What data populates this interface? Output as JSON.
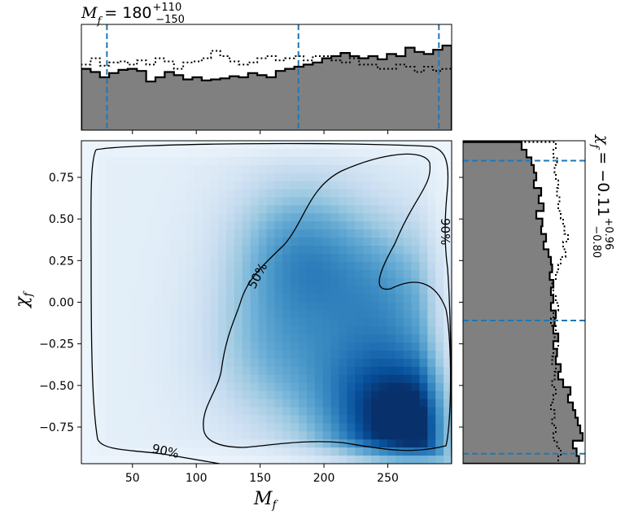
{
  "chart_data": [
    {
      "type": "heatmap",
      "title": "",
      "xlabel": "M_f",
      "ylabel": "χ_f",
      "xlim": [
        10,
        300
      ],
      "ylim": [
        -0.97,
        0.97
      ],
      "xticks": [
        50,
        100,
        150,
        200,
        250
      ],
      "yticks": [
        -0.75,
        -0.5,
        -0.25,
        0.0,
        0.25,
        0.5,
        0.75
      ],
      "xtick_labels": [
        "50",
        "100",
        "150",
        "200",
        "250"
      ],
      "ytick_labels": [
        "−0.75",
        "−0.50",
        "−0.25",
        "0.00",
        "0.25",
        "0.50",
        "0.75"
      ],
      "colormap": "Blues",
      "density_peaks": [
        {
          "x": 278,
          "y": -0.8,
          "weight": 1.0
        },
        {
          "x": 180,
          "y": 0.3,
          "weight": 0.55
        },
        {
          "x": 250,
          "y": 0.05,
          "weight": 0.45
        },
        {
          "x": 230,
          "y": -0.6,
          "weight": 0.5
        },
        {
          "x": 160,
          "y": -0.3,
          "weight": 0.35
        }
      ],
      "contours": [
        {
          "label": "50%",
          "level": 0.5
        },
        {
          "label": "90%",
          "level": 0.9
        }
      ]
    },
    {
      "type": "histogram",
      "orientation": "vertical",
      "variable": "M_f",
      "xlim": [
        10,
        300
      ],
      "bin_edges": [
        10,
        17.25,
        24.5,
        31.75,
        39,
        46.25,
        53.5,
        60.75,
        68,
        75.25,
        82.5,
        89.75,
        97,
        104.25,
        111.5,
        118.75,
        126,
        133.25,
        140.5,
        147.75,
        155,
        162.25,
        169.5,
        176.75,
        184,
        191.25,
        198.5,
        205.75,
        213,
        220.25,
        227.5,
        234.75,
        242,
        249.25,
        256.5,
        263.75,
        271,
        278.25,
        285.5,
        292.75,
        300
      ],
      "posterior_counts": [
        0.58,
        0.55,
        0.5,
        0.54,
        0.57,
        0.58,
        0.56,
        0.46,
        0.5,
        0.55,
        0.52,
        0.48,
        0.5,
        0.47,
        0.48,
        0.49,
        0.51,
        0.5,
        0.54,
        0.52,
        0.5,
        0.56,
        0.58,
        0.6,
        0.62,
        0.64,
        0.68,
        0.7,
        0.73,
        0.7,
        0.68,
        0.7,
        0.67,
        0.72,
        0.7,
        0.78,
        0.74,
        0.72,
        0.76,
        0.8
      ],
      "prior_counts": [
        0.62,
        0.68,
        0.61,
        0.64,
        0.65,
        0.62,
        0.66,
        0.62,
        0.68,
        0.65,
        0.58,
        0.64,
        0.65,
        0.68,
        0.75,
        0.7,
        0.65,
        0.62,
        0.64,
        0.68,
        0.7,
        0.66,
        0.68,
        0.7,
        0.66,
        0.7,
        0.7,
        0.66,
        0.64,
        0.68,
        0.62,
        0.62,
        0.58,
        0.58,
        0.62,
        0.6,
        0.55,
        0.6,
        0.56,
        0.58
      ],
      "median": 180,
      "lower": 30,
      "upper": 290,
      "summary": {
        "symbol": "M",
        "subscript": "f",
        "value": "= 180",
        "plus": "+110",
        "minus": "−150"
      }
    },
    {
      "type": "histogram",
      "orientation": "horizontal",
      "variable": "χ_f",
      "ylim": [
        -0.97,
        0.97
      ],
      "bin_edges": [
        -0.97,
        -0.924,
        -0.878,
        -0.832,
        -0.786,
        -0.74,
        -0.694,
        -0.648,
        -0.602,
        -0.556,
        -0.51,
        -0.464,
        -0.418,
        -0.372,
        -0.326,
        -0.28,
        -0.234,
        -0.188,
        -0.142,
        -0.096,
        -0.05,
        -0.004,
        0.042,
        0.088,
        0.134,
        0.18,
        0.226,
        0.272,
        0.318,
        0.364,
        0.41,
        0.456,
        0.502,
        0.548,
        0.594,
        0.64,
        0.686,
        0.732,
        0.778,
        0.824,
        0.87,
        0.916,
        0.962
      ],
      "posterior_counts": [
        0.95,
        0.93,
        0.9,
        0.98,
        0.96,
        0.94,
        0.92,
        0.9,
        0.86,
        0.88,
        0.82,
        0.78,
        0.8,
        0.76,
        0.77,
        0.74,
        0.78,
        0.74,
        0.75,
        0.76,
        0.72,
        0.74,
        0.72,
        0.74,
        0.71,
        0.73,
        0.72,
        0.7,
        0.66,
        0.68,
        0.64,
        0.65,
        0.6,
        0.66,
        0.62,
        0.64,
        0.58,
        0.6,
        0.58,
        0.56,
        0.52,
        0.48
      ],
      "prior_counts": [
        0.78,
        0.8,
        0.77,
        0.74,
        0.76,
        0.73,
        0.75,
        0.72,
        0.74,
        0.76,
        0.73,
        0.75,
        0.76,
        0.73,
        0.74,
        0.78,
        0.75,
        0.76,
        0.72,
        0.74,
        0.78,
        0.76,
        0.74,
        0.73,
        0.76,
        0.78,
        0.8,
        0.84,
        0.82,
        0.86,
        0.83,
        0.82,
        0.8,
        0.78,
        0.79,
        0.77,
        0.78,
        0.76,
        0.75,
        0.77,
        0.74,
        0.76
      ],
      "median": -0.11,
      "lower": -0.91,
      "upper": 0.85,
      "summary": {
        "symbol": "χ",
        "subscript": "f",
        "value": "= −0.11",
        "plus": "+0.96",
        "minus": "−0.80"
      }
    }
  ],
  "colors": {
    "hist_fill": "#808080",
    "hist_edge": "#000000",
    "interval_line": "#1f77b4",
    "density_low": "#f7fbff",
    "density_high": "#08306b"
  }
}
